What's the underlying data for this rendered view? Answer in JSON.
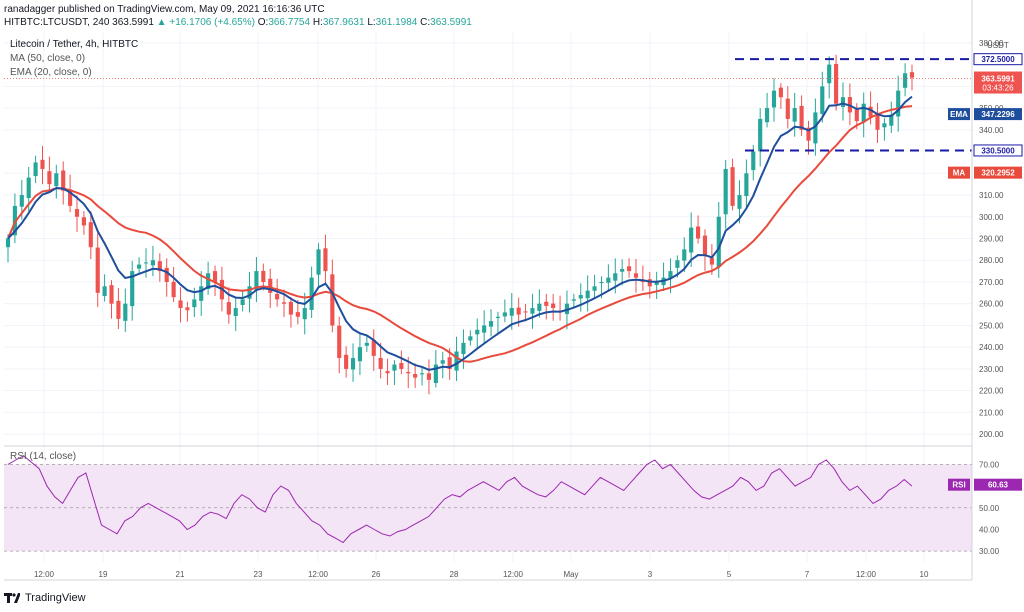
{
  "header": {
    "publisher": "ranadagger",
    "published_text": "published on TradingView.com, May 09, 2021 16:16:36 UTC",
    "symbol_line": "HITBTC:LTCUSDT, 240",
    "last": "363.5991",
    "change": "▲ +16.1706 (+4.65%)",
    "open_label": "O:",
    "open": "366.7754",
    "high_label": "H:",
    "high": "367.9631",
    "low_label": "L:",
    "low": "361.1984",
    "close_label": "C:",
    "close": "363.5991"
  },
  "legend": {
    "title": "Litecoin / Tether, 4h, HITBTC",
    "ma": "MA (50, close, 0)",
    "ema": "EMA (20, close, 0)",
    "rsi": "RSI (14, close)"
  },
  "colors": {
    "up": "#26a69a",
    "down": "#ef5350",
    "ema": "#1f4e9c",
    "ma": "#e84a3c",
    "rsi": "#9c27b0",
    "rsi_band": "#f3e5f5",
    "dashed": "#1a1aa6",
    "price_tag": "#ef5350"
  },
  "footer": {
    "brand": "TradingView",
    "logo_icon": "tradingview-logo-icon"
  },
  "chart_data": [
    {
      "type": "candlestick",
      "title": "Litecoin / Tether, 4h, HITBTC",
      "unit": "USDT",
      "ylim": [
        195,
        385
      ],
      "x_ticks": [
        "12:00",
        "19",
        "21",
        "23",
        "12:00",
        "26",
        "28",
        "12:00",
        "May",
        "3",
        "5",
        "7",
        "12:00",
        "10"
      ],
      "y_ticks": [
        200,
        210,
        220,
        230,
        240,
        250,
        260,
        270,
        280,
        290,
        300,
        310,
        320,
        340,
        350,
        360,
        380
      ],
      "close": [
        290,
        305,
        310,
        318,
        325,
        322,
        315,
        320,
        312,
        305,
        300,
        296,
        286,
        265,
        268,
        260,
        253,
        260,
        275,
        278,
        279,
        280,
        275,
        270,
        263,
        258,
        257,
        262,
        268,
        274,
        270,
        262,
        255,
        258,
        262,
        268,
        275,
        270,
        265,
        262,
        260,
        255,
        254,
        258,
        272,
        285,
        275,
        250,
        235,
        230,
        235,
        240,
        242,
        236,
        230,
        228,
        232,
        230,
        228,
        226,
        228,
        225,
        232,
        234,
        230,
        238,
        242,
        245,
        248,
        250,
        252,
        254,
        256,
        258,
        255,
        256,
        258,
        260,
        259,
        258,
        256,
        260,
        262,
        264,
        266,
        268,
        270,
        272,
        274,
        276,
        275,
        272,
        270,
        268,
        270,
        272,
        275,
        280,
        285,
        295,
        290,
        282,
        278,
        300,
        322,
        305,
        310,
        320,
        330,
        345,
        350,
        358,
        355,
        345,
        350,
        340,
        335,
        348,
        360,
        370,
        352,
        355,
        348,
        344,
        352,
        346,
        340,
        343,
        347,
        358,
        366,
        364
      ],
      "ohlc_sample_last": {
        "open": 366.7754,
        "high": 367.9631,
        "low": 361.1984,
        "close": 363.5991
      },
      "levels": [
        {
          "label": "372.5000",
          "value": 372.5,
          "style": "dashed"
        },
        {
          "label": "330.5000",
          "value": 330.5,
          "style": "dashed"
        }
      ],
      "price_tags": [
        {
          "label": "363.5991",
          "sub": "03:43:26",
          "value": 363.5991
        },
        {
          "tag": "EMA",
          "label": "347.2296",
          "value": 347.2296
        },
        {
          "tag": "MA",
          "label": "320.2952",
          "value": 320.2952
        }
      ],
      "series": [
        {
          "name": "EMA (20, close, 0)",
          "color": "#1f4e9c"
        },
        {
          "name": "MA (50, close, 0)",
          "color": "#e84a3c"
        }
      ]
    },
    {
      "type": "line",
      "title": "RSI (14, close)",
      "ylim": [
        25,
        78
      ],
      "y_ticks": [
        30,
        40,
        50,
        60,
        70
      ],
      "band": [
        30,
        70
      ],
      "values": [
        70,
        72,
        74,
        71,
        68,
        60,
        55,
        52,
        58,
        64,
        66,
        54,
        42,
        40,
        38,
        44,
        46,
        50,
        52,
        50,
        48,
        46,
        44,
        40,
        42,
        46,
        48,
        47,
        45,
        52,
        56,
        54,
        50,
        48,
        56,
        60,
        58,
        52,
        48,
        44,
        42,
        38,
        36,
        34,
        38,
        40,
        42,
        40,
        38,
        37,
        39,
        40,
        42,
        44,
        46,
        50,
        54,
        56,
        55,
        58,
        60,
        62,
        60,
        58,
        62,
        64,
        60,
        58,
        56,
        55,
        58,
        62,
        60,
        58,
        56,
        60,
        64,
        62,
        60,
        58,
        62,
        66,
        70,
        72,
        68,
        70,
        66,
        62,
        58,
        55,
        54,
        56,
        58,
        60,
        64,
        62,
        58,
        60,
        66,
        68,
        64,
        60,
        62,
        64,
        70,
        72,
        68,
        62,
        58,
        60,
        56,
        52,
        54,
        58,
        60,
        63,
        60
      ],
      "last": {
        "label": "60.63",
        "value": 60.63
      }
    }
  ]
}
